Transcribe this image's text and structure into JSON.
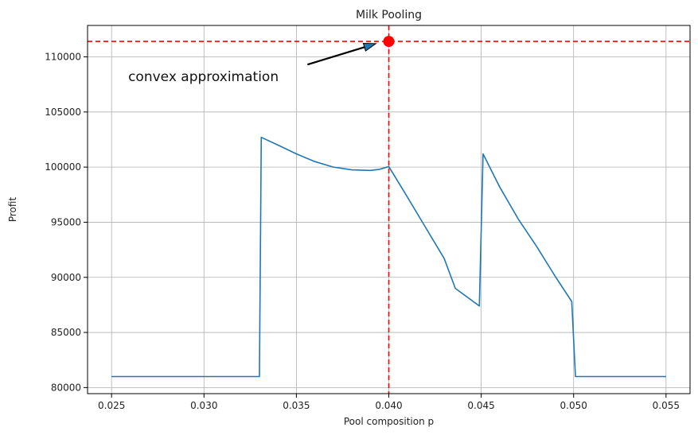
{
  "chart_data": {
    "type": "line",
    "title": "Milk Pooling",
    "xlabel": "Pool composition p",
    "ylabel": "Profit",
    "xlim": [
      0.0237,
      0.0563
    ],
    "ylim": [
      79450,
      112850
    ],
    "grid": true,
    "xticks": [
      0.025,
      0.03,
      0.035,
      0.04,
      0.045,
      0.05,
      0.055
    ],
    "xtick_labels": [
      "0.025",
      "0.030",
      "0.035",
      "0.040",
      "0.045",
      "0.050",
      "0.055"
    ],
    "yticks": [
      80000,
      85000,
      90000,
      95000,
      100000,
      105000,
      110000
    ],
    "ytick_labels": [
      "80000",
      "85000",
      "90000",
      "95000",
      "100000",
      "105000",
      "110000"
    ],
    "series": [
      {
        "color": "#1f77b4",
        "x": [
          0.025,
          0.033,
          0.0331,
          0.034,
          0.035,
          0.036,
          0.037,
          0.038,
          0.039,
          0.0395,
          0.04,
          0.041,
          0.042,
          0.043,
          0.0436,
          0.0449,
          0.0451,
          0.046,
          0.047,
          0.048,
          0.049,
          0.0499,
          0.0501,
          0.055
        ],
        "y": [
          81000,
          81000,
          102700,
          102000,
          101200,
          100500,
          100000,
          99750,
          99700,
          99800,
          100050,
          97300,
          94500,
          91700,
          89000,
          87400,
          101200,
          98200,
          95300,
          92800,
          90100,
          87800,
          81000,
          81000
        ]
      }
    ],
    "reference_lines": {
      "color": "#ff0000",
      "vertical_x": 0.04,
      "horizontal_y": 111400
    },
    "highlight_point": {
      "x": 0.04,
      "y": 111400,
      "color": "#ff0000"
    },
    "annotation": {
      "text": "convex approximation",
      "text_x": 0.0259,
      "text_y": 107800,
      "arrow_from": [
        0.0356,
        109300
      ],
      "arrow_to": [
        0.0393,
        111200
      ]
    }
  }
}
